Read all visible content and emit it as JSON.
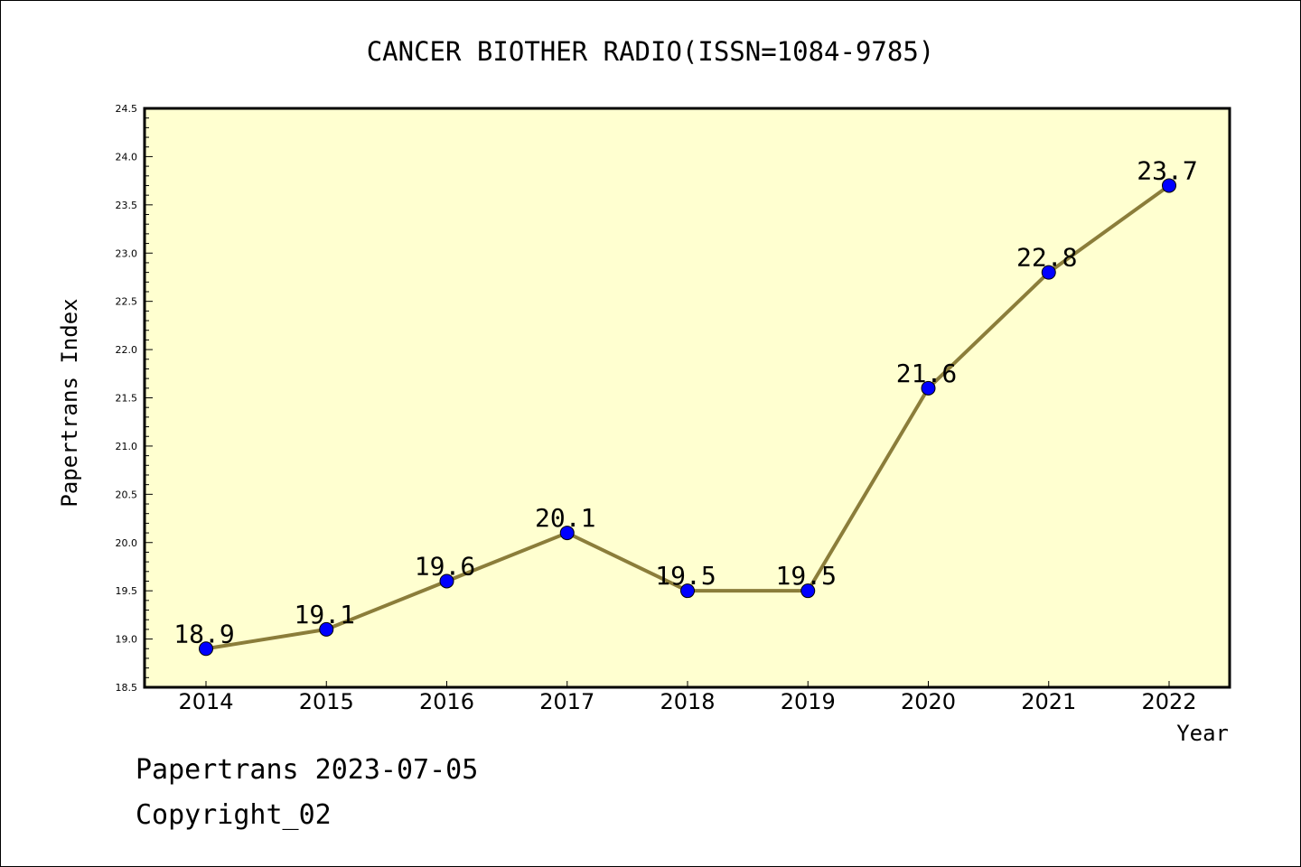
{
  "chart_data": {
    "type": "line",
    "title": "CANCER BIOTHER RADIO(ISSN=1084-9785)",
    "xlabel": "Year",
    "ylabel": "Papertrans Index",
    "categories": [
      "2014",
      "2015",
      "2016",
      "2017",
      "2018",
      "2019",
      "2020",
      "2021",
      "2022"
    ],
    "values": [
      18.9,
      19.1,
      19.6,
      20.1,
      19.5,
      19.5,
      21.6,
      22.8,
      23.7
    ],
    "data_labels": [
      "18.9",
      "19.1",
      "19.6",
      "20.1",
      "19.5",
      "19.5",
      "21.6",
      "22.8",
      "23.7"
    ],
    "ylim": [
      18.5,
      24.5
    ],
    "yticks": [
      "18.5",
      "19.0",
      "19.5",
      "20.0",
      "20.5",
      "21.0",
      "21.5",
      "22.0",
      "22.5",
      "23.0",
      "23.5",
      "24.0",
      "24.5"
    ],
    "grid": false,
    "legend": "none",
    "colors": {
      "plot_background": "#ffffd0",
      "line": "#8b7d3a",
      "marker": "#0000ff"
    }
  },
  "footer": {
    "date_line": "Papertrans 2023-07-05",
    "copyright": "Copyright_02"
  }
}
